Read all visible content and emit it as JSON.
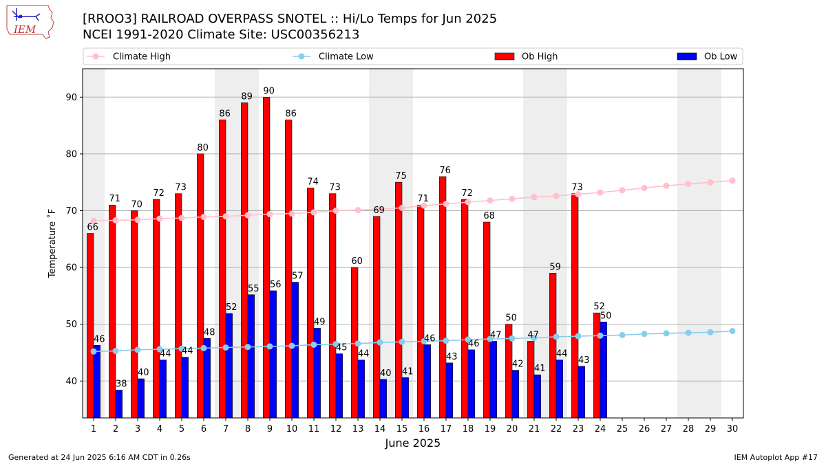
{
  "header": {
    "title_line1": "[RROO3] RAILROAD OVERPASS SNOTEL :: Hi/Lo Temps for Jun 2025",
    "title_line2": "NCEI 1991-2020 Climate Site: USC00356213",
    "logo_text": "IEM"
  },
  "footer": {
    "left": "Generated at 24 Jun 2025 6:16 AM CDT in 0.26s",
    "right": "IEM Autoplot App #17"
  },
  "colors": {
    "ob_high": "#ff0000",
    "ob_low": "#0000ff",
    "climate_high": "#ffc0cb",
    "climate_low": "#87ceeb",
    "weekend_band": "#eeeeee",
    "grid": "#b0b0b0"
  },
  "chart_data": {
    "type": "bar",
    "title": "[RROO3] RAILROAD OVERPASS SNOTEL :: Hi/Lo Temps for Jun 2025",
    "xlabel": "June 2025",
    "ylabel": "Temperature ˚F",
    "ylim": [
      33.5,
      95
    ],
    "yticks": [
      40,
      50,
      60,
      70,
      80,
      90
    ],
    "xlim": [
      0.5,
      30.5
    ],
    "days": [
      1,
      2,
      3,
      4,
      5,
      6,
      7,
      8,
      9,
      10,
      11,
      12,
      13,
      14,
      15,
      16,
      17,
      18,
      19,
      20,
      21,
      22,
      23,
      24,
      25,
      26,
      27,
      28,
      29,
      30
    ],
    "shaded_ranges": [
      [
        0.5,
        1.5
      ],
      [
        6.5,
        8.5
      ],
      [
        13.5,
        15.5
      ],
      [
        20.5,
        22.5
      ],
      [
        27.5,
        29.5
      ]
    ],
    "legend": [
      "Climate High",
      "Climate Low",
      "Ob High",
      "Ob Low"
    ],
    "series": [
      {
        "name": "Ob High",
        "kind": "bar",
        "values": [
          66,
          71,
          70,
          72,
          73,
          80,
          86,
          89,
          90,
          86,
          74,
          73,
          60,
          69,
          75,
          71,
          76,
          72,
          68,
          50,
          47,
          59,
          73,
          52
        ],
        "labels": [
          66,
          71,
          70,
          72,
          73,
          80,
          86,
          89,
          90,
          86,
          74,
          73,
          60,
          69,
          75,
          71,
          76,
          72,
          68,
          50,
          47,
          59,
          73,
          52
        ]
      },
      {
        "name": "Ob Low",
        "kind": "bar",
        "values": [
          46.3,
          38.4,
          40.4,
          43.7,
          44.2,
          47.5,
          51.9,
          55.2,
          55.9,
          57.4,
          49.3,
          44.8,
          43.7,
          40.3,
          40.6,
          46.4,
          43.2,
          45.5,
          47.0,
          41.9,
          41.1,
          43.7,
          42.6,
          50.4
        ],
        "labels": [
          46,
          38,
          40,
          44,
          44,
          48,
          52,
          55,
          56,
          57,
          49,
          45,
          44,
          40,
          41,
          46,
          43,
          46,
          47,
          42,
          41,
          44,
          43,
          50
        ]
      },
      {
        "name": "Climate High",
        "kind": "line",
        "values": [
          68.2,
          68.3,
          68.4,
          68.6,
          68.7,
          68.9,
          69.0,
          69.2,
          69.4,
          69.5,
          69.7,
          70.0,
          70.1,
          70.3,
          70.5,
          70.9,
          71.2,
          71.5,
          71.8,
          72.1,
          72.4,
          72.6,
          72.9,
          73.2,
          73.6,
          74.0,
          74.4,
          74.7,
          75.0,
          75.3
        ]
      },
      {
        "name": "Climate Low",
        "kind": "line",
        "values": [
          45.2,
          45.3,
          45.5,
          45.6,
          45.7,
          45.8,
          45.9,
          46.0,
          46.1,
          46.2,
          46.4,
          46.5,
          46.6,
          46.8,
          46.9,
          47.0,
          47.1,
          47.3,
          47.4,
          47.5,
          47.6,
          47.8,
          47.9,
          48.0,
          48.1,
          48.3,
          48.4,
          48.5,
          48.6,
          48.8
        ]
      }
    ]
  }
}
